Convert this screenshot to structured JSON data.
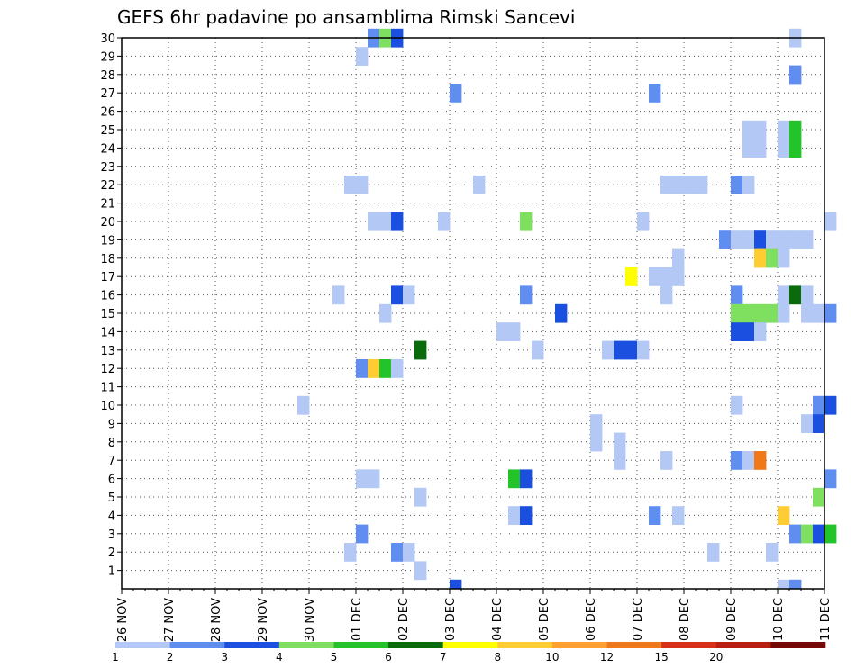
{
  "chart_data": {
    "type": "heatmap",
    "title": "GEFS 6hr padavine po ansamblima Rimski Sancevi",
    "xlabel": "",
    "ylabel": "",
    "x_ticks": [
      "26 NOV",
      "27 NOV",
      "28 NOV",
      "29 NOV",
      "30 NOV",
      "01 DEC",
      "02 DEC",
      "03 DEC",
      "04 DEC",
      "05 DEC",
      "06 DEC",
      "07 DEC",
      "08 DEC",
      "09 DEC",
      "10 DEC",
      "11 DEC"
    ],
    "x_unit": "6h steps from 26 NOV 00Z",
    "y_ticks": [
      1,
      2,
      3,
      4,
      5,
      6,
      7,
      8,
      9,
      10,
      11,
      12,
      13,
      14,
      15,
      16,
      17,
      18,
      19,
      20,
      21,
      22,
      23,
      24,
      25,
      26,
      27,
      28,
      29,
      30
    ],
    "ylim": [
      0,
      30
    ],
    "grid": true,
    "colorbar": {
      "labels": [
        "1",
        "2",
        "3",
        "4",
        "5",
        "6",
        "7",
        "8",
        "10",
        "12",
        "15",
        "20"
      ],
      "colors": [
        "#b3c8f5",
        "#5f8ef0",
        "#1a4fe0",
        "#7fe060",
        "#22c42a",
        "#096b09",
        "#ffff00",
        "#ffcc33",
        "#ffa030",
        "#f07818",
        "#d83018",
        "#b81e12",
        "#780808"
      ]
    },
    "cells": [
      [
        30,
        21,
        2
      ],
      [
        30,
        22,
        4
      ],
      [
        30,
        23,
        3
      ],
      [
        30,
        57,
        1
      ],
      [
        29,
        20,
        1
      ],
      [
        28,
        57,
        2
      ],
      [
        27,
        28,
        2
      ],
      [
        27,
        45,
        2
      ],
      [
        25,
        53,
        1
      ],
      [
        25,
        54,
        1
      ],
      [
        25,
        56,
        1
      ],
      [
        25,
        57,
        5
      ],
      [
        24,
        53,
        1
      ],
      [
        24,
        54,
        1
      ],
      [
        24,
        56,
        1
      ],
      [
        24,
        57,
        5
      ],
      [
        22,
        19,
        1
      ],
      [
        22,
        20,
        1
      ],
      [
        22,
        30,
        1
      ],
      [
        22,
        46,
        1
      ],
      [
        22,
        47,
        1
      ],
      [
        22,
        48,
        1
      ],
      [
        22,
        49,
        1
      ],
      [
        22,
        52,
        2
      ],
      [
        22,
        53,
        1
      ],
      [
        20,
        21,
        1
      ],
      [
        20,
        22,
        1
      ],
      [
        20,
        23,
        3
      ],
      [
        20,
        27,
        1
      ],
      [
        20,
        34,
        4
      ],
      [
        20,
        44,
        1
      ],
      [
        20,
        60,
        1
      ],
      [
        19,
        51,
        2
      ],
      [
        19,
        52,
        1
      ],
      [
        19,
        53,
        1
      ],
      [
        19,
        54,
        3
      ],
      [
        19,
        55,
        1
      ],
      [
        19,
        56,
        1
      ],
      [
        19,
        57,
        1
      ],
      [
        19,
        58,
        1
      ],
      [
        18,
        47,
        1
      ],
      [
        18,
        54,
        8
      ],
      [
        18,
        55,
        4
      ],
      [
        18,
        56,
        1
      ],
      [
        17,
        43,
        7
      ],
      [
        17,
        45,
        1
      ],
      [
        17,
        46,
        1
      ],
      [
        17,
        47,
        1
      ],
      [
        16,
        18,
        1
      ],
      [
        16,
        23,
        3
      ],
      [
        16,
        24,
        1
      ],
      [
        16,
        34,
        2
      ],
      [
        16,
        46,
        1
      ],
      [
        16,
        52,
        2
      ],
      [
        16,
        56,
        1
      ],
      [
        16,
        57,
        6
      ],
      [
        16,
        58,
        1
      ],
      [
        15,
        22,
        1
      ],
      [
        15,
        37,
        3
      ],
      [
        15,
        52,
        4
      ],
      [
        15,
        53,
        4
      ],
      [
        15,
        54,
        4
      ],
      [
        15,
        55,
        4
      ],
      [
        15,
        56,
        1
      ],
      [
        15,
        58,
        1
      ],
      [
        15,
        59,
        1
      ],
      [
        15,
        60,
        2
      ],
      [
        14,
        32,
        1
      ],
      [
        14,
        33,
        1
      ],
      [
        14,
        52,
        3
      ],
      [
        14,
        53,
        3
      ],
      [
        14,
        54,
        1
      ],
      [
        13,
        25,
        6
      ],
      [
        13,
        35,
        1
      ],
      [
        13,
        41,
        1
      ],
      [
        13,
        42,
        3
      ],
      [
        13,
        43,
        3
      ],
      [
        13,
        44,
        1
      ],
      [
        12,
        20,
        2
      ],
      [
        12,
        21,
        8
      ],
      [
        12,
        22,
        5
      ],
      [
        12,
        23,
        1
      ],
      [
        10,
        15,
        1
      ],
      [
        10,
        52,
        1
      ],
      [
        10,
        59,
        2
      ],
      [
        10,
        60,
        3
      ],
      [
        9,
        40,
        1
      ],
      [
        9,
        58,
        1
      ],
      [
        9,
        59,
        3
      ],
      [
        8,
        40,
        1
      ],
      [
        8,
        42,
        1
      ],
      [
        7,
        42,
        1
      ],
      [
        7,
        46,
        1
      ],
      [
        7,
        52,
        2
      ],
      [
        7,
        53,
        1
      ],
      [
        7,
        54,
        10
      ],
      [
        6,
        20,
        1
      ],
      [
        6,
        21,
        1
      ],
      [
        6,
        33,
        5
      ],
      [
        6,
        34,
        3
      ],
      [
        6,
        60,
        2
      ],
      [
        5,
        25,
        1
      ],
      [
        5,
        59,
        4
      ],
      [
        4,
        33,
        1
      ],
      [
        4,
        34,
        3
      ],
      [
        4,
        45,
        2
      ],
      [
        4,
        47,
        1
      ],
      [
        4,
        56,
        8
      ],
      [
        3,
        20,
        2
      ],
      [
        3,
        57,
        2
      ],
      [
        3,
        58,
        4
      ],
      [
        3,
        59,
        3
      ],
      [
        3,
        60,
        5
      ],
      [
        2,
        19,
        1
      ],
      [
        2,
        23,
        2
      ],
      [
        2,
        24,
        1
      ],
      [
        2,
        50,
        1
      ],
      [
        2,
        55,
        1
      ],
      [
        1,
        25,
        1
      ],
      [
        0,
        28,
        3
      ],
      [
        0,
        56,
        1
      ],
      [
        0,
        57,
        2
      ]
    ]
  }
}
